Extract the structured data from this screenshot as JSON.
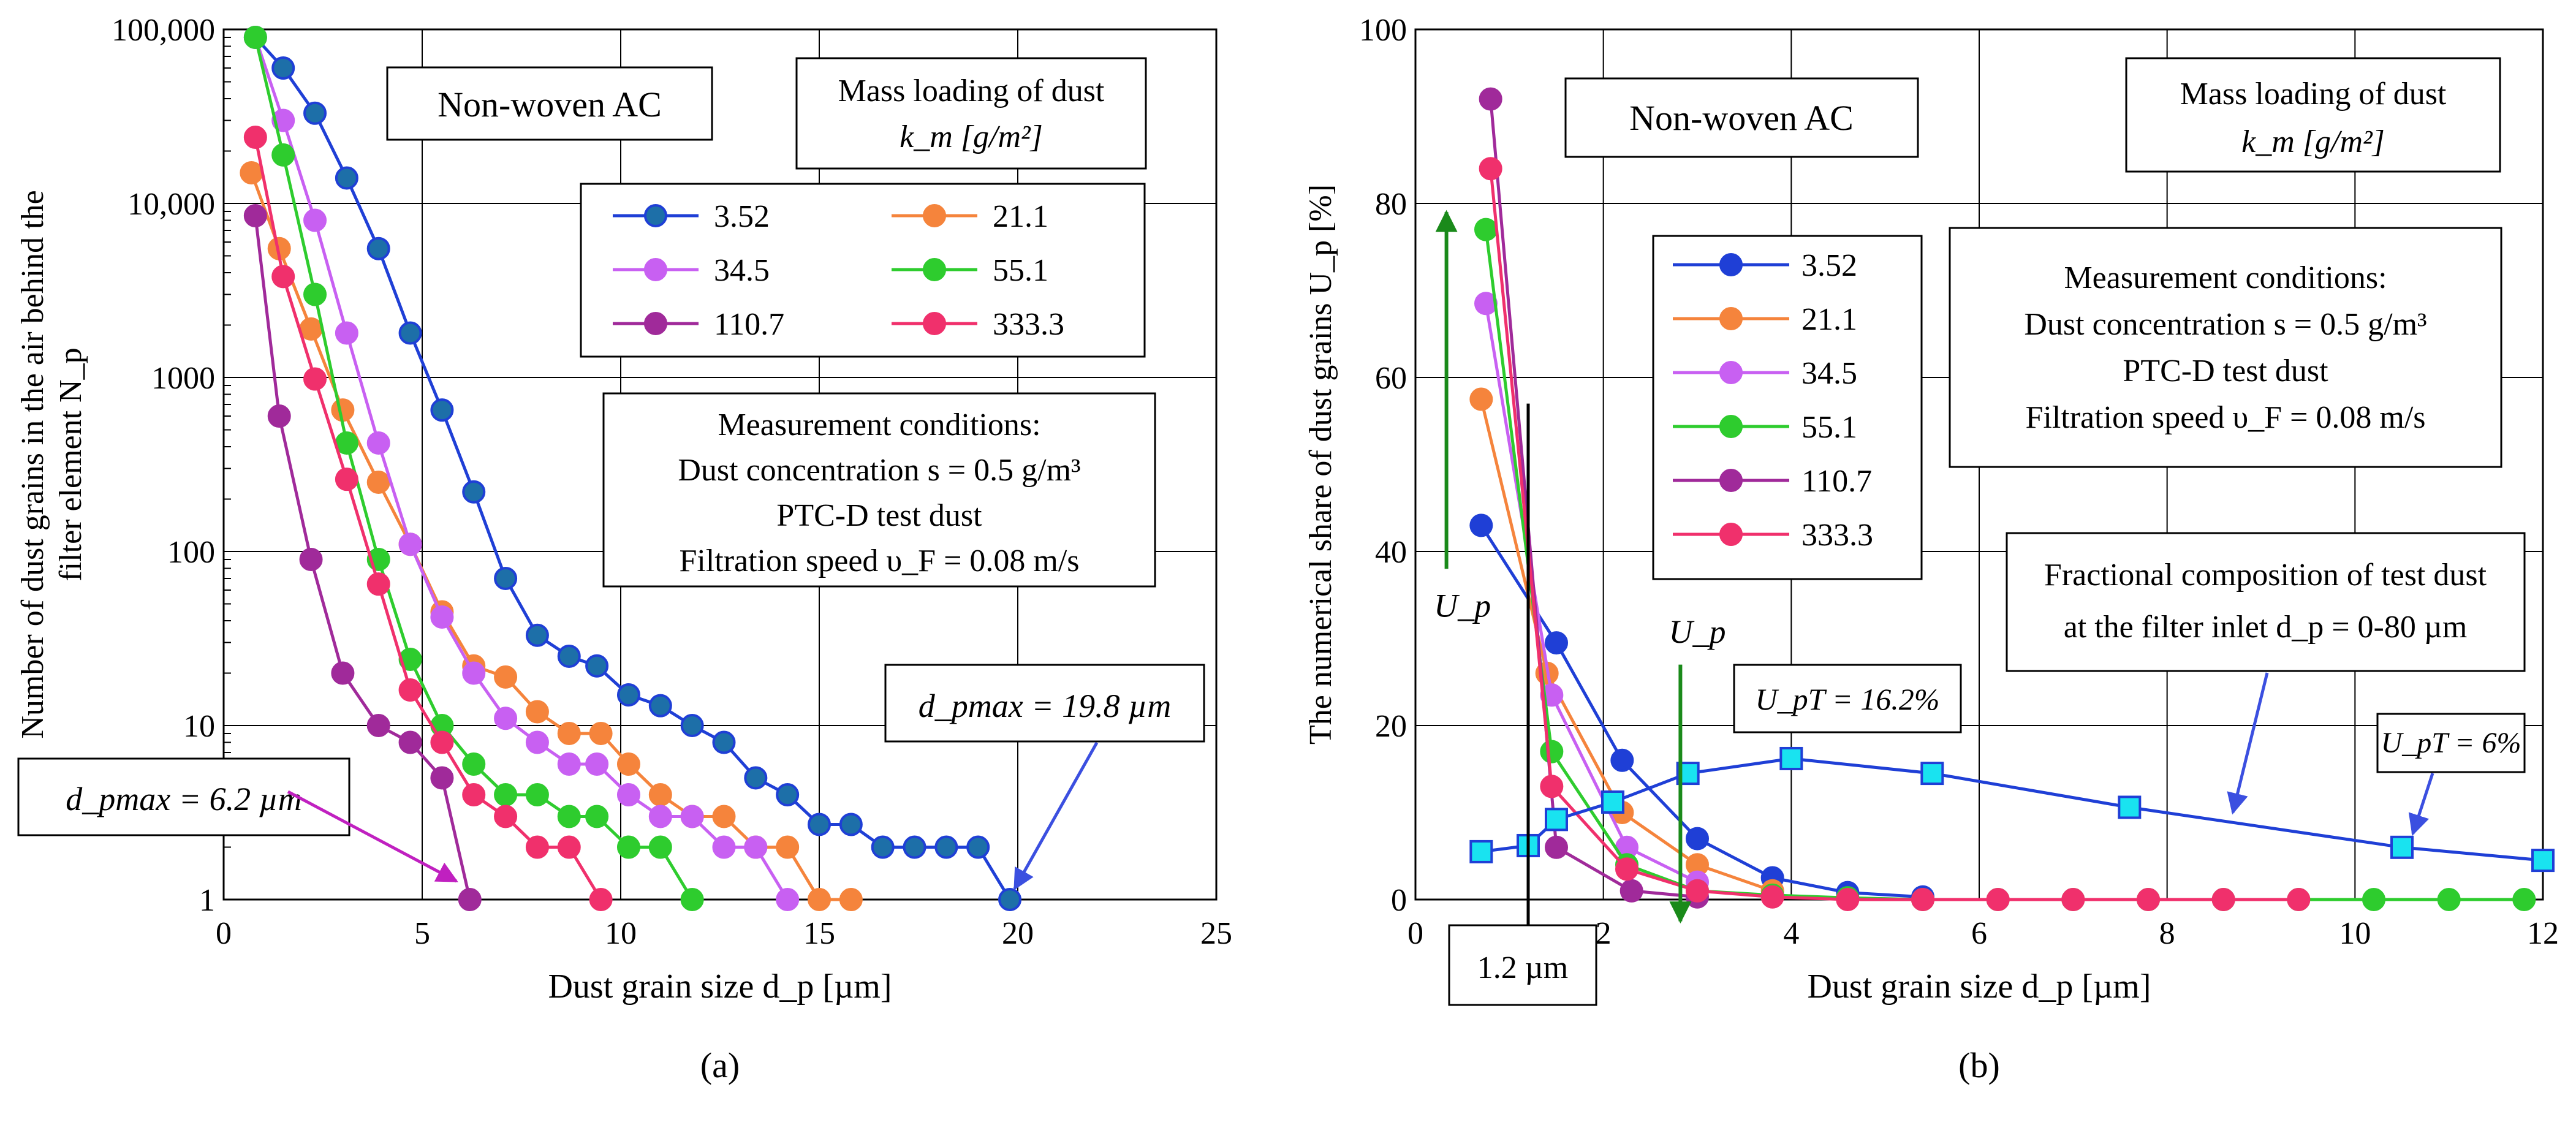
{
  "chart_data": [
    {
      "type": "line",
      "panel_label": "(a)",
      "xlabel": "Dust grain size d_p [µm]",
      "ylabel_lines": [
        "Number of dust grains in the air behind the",
        "filter element N_p"
      ],
      "yscale": "log",
      "xlim": [
        0,
        25
      ],
      "ylim": [
        1,
        100000
      ],
      "xticks": [
        0,
        5,
        10,
        15,
        20,
        25
      ],
      "yticks": [
        1,
        10,
        100,
        1000,
        10000,
        100000
      ],
      "ytick_labels": [
        "1",
        "10",
        "100",
        "1000",
        "10,000",
        "100,000"
      ],
      "title_box": "Non-woven AC",
      "legend_title_lines": [
        "Mass loading of dust",
        "k_m [g/m²]"
      ],
      "conditions_lines": [
        "Measurement conditions:",
        "Dust concentration s = 0.5 g/m³",
        "PTC-D test dust",
        "Filtration speed υ_F = 0.08 m/s"
      ],
      "annotations": [
        {
          "text": "d_pmax = 19.8 µm",
          "at": [
            19.8,
            1
          ]
        },
        {
          "text": "d_pmax = 6.2 µm",
          "at": [
            6.2,
            1
          ]
        }
      ],
      "series": [
        {
          "name": "3.52",
          "color": "#1f3fd6",
          "marker_fill": "#1d6fa8",
          "x": [
            0.8,
            1.5,
            2.3,
            3.1,
            3.9,
            4.7,
            5.5,
            6.3,
            7.1,
            7.9,
            8.7,
            9.4,
            10.2,
            11.0,
            11.8,
            12.6,
            13.4,
            14.2,
            15.0,
            15.8,
            16.6,
            17.4,
            18.2,
            19.0,
            19.8
          ],
          "y": [
            90000,
            60000,
            33000,
            14000,
            5500,
            1800,
            650,
            220,
            70,
            33,
            25,
            22,
            15,
            13,
            10,
            8,
            5,
            4,
            2.7,
            2.7,
            2,
            2,
            2,
            2,
            1
          ]
        },
        {
          "name": "21.1",
          "color": "#f5843c",
          "marker_fill": "#f5843c",
          "x": [
            0.7,
            1.4,
            2.2,
            3.0,
            3.9,
            4.7,
            5.5,
            6.3,
            7.1,
            7.9,
            8.7,
            9.5,
            10.2,
            11.0,
            11.8,
            12.6,
            13.4,
            14.2,
            15.0,
            15.8
          ],
          "y": [
            15000,
            5500,
            1900,
            650,
            250,
            110,
            45,
            22,
            19,
            12,
            9,
            9,
            6,
            4,
            3,
            3,
            2,
            2,
            1,
            1
          ]
        },
        {
          "name": "34.5",
          "color": "#c860f2",
          "marker_fill": "#c860f2",
          "x": [
            0.8,
            1.5,
            2.3,
            3.1,
            3.9,
            4.7,
            5.5,
            6.3,
            7.1,
            7.9,
            8.7,
            9.4,
            10.2,
            11.0,
            11.8,
            12.6,
            13.4,
            14.2
          ],
          "y": [
            90000,
            30000,
            8000,
            1800,
            420,
            110,
            42,
            20,
            11,
            8,
            6,
            6,
            4,
            3,
            3,
            2,
            2,
            1
          ]
        },
        {
          "name": "55.1",
          "color": "#2ecc2e",
          "marker_fill": "#2ecc2e",
          "x": [
            0.8,
            1.5,
            2.3,
            3.1,
            3.9,
            4.7,
            5.5,
            6.3,
            7.1,
            7.9,
            8.7,
            9.4,
            10.2,
            11.0,
            11.8
          ],
          "y": [
            90000,
            19000,
            3000,
            420,
            90,
            24,
            10,
            6,
            4,
            4,
            3,
            3,
            2,
            2,
            1
          ]
        },
        {
          "name": "110.7",
          "color": "#a02a9a",
          "marker_fill": "#a02a9a",
          "x": [
            0.8,
            1.4,
            2.2,
            3.0,
            3.9,
            4.7,
            5.5,
            6.2
          ],
          "y": [
            8500,
            600,
            90,
            20,
            10,
            8,
            5,
            1
          ]
        },
        {
          "name": "333.3",
          "color": "#f0306c",
          "marker_fill": "#f0306c",
          "x": [
            0.8,
            1.5,
            2.3,
            3.1,
            3.9,
            4.7,
            5.5,
            6.3,
            7.1,
            7.9,
            8.7,
            9.5
          ],
          "y": [
            24000,
            3800,
            980,
            260,
            65,
            16,
            8,
            4,
            3,
            2,
            2,
            1
          ]
        }
      ]
    },
    {
      "type": "line",
      "panel_label": "(b)",
      "xlabel": "Dust grain size d_p [µm]",
      "ylabel": "The numerical share of dust grains U_p [%]",
      "xlim": [
        0,
        12
      ],
      "ylim": [
        0,
        100
      ],
      "xticks": [
        0,
        2,
        4,
        6,
        8,
        10,
        12
      ],
      "yticks": [
        0,
        20,
        40,
        60,
        80,
        100
      ],
      "title_box": "Non-woven AC",
      "legend_title_lines": [
        "Mass loading of dust",
        "k_m [g/m²]"
      ],
      "conditions_lines": [
        "Measurement conditions:",
        "Dust concentration s = 0.5 g/m³",
        "PTC-D test dust",
        "Filtration speed υ_F = 0.08 m/s"
      ],
      "test_dust_label_lines": [
        "Fractional composition of test dust",
        "at the filter inlet d_p = 0-80 µm"
      ],
      "annotations": [
        {
          "text": "U_pT = 16.2%",
          "at": [
            4.0,
            16.2
          ]
        },
        {
          "text": "U_pT = 6%",
          "at": [
            10.5,
            6
          ]
        },
        {
          "text": "1.2 µm",
          "at": [
            1.2,
            0
          ]
        },
        {
          "text": "U_p",
          "at": [
            0.3,
            34
          ]
        },
        {
          "text": "U_p",
          "at": [
            2.7,
            30
          ]
        }
      ],
      "series": [
        {
          "name": "3.52",
          "color": "#1f3fd6",
          "marker_fill": "#1f3fd6",
          "x": [
            0.7,
            1.5,
            2.2,
            3.0,
            3.8,
            4.6,
            5.4
          ],
          "y": [
            43,
            29.5,
            16,
            7,
            2.5,
            0.8,
            0.3
          ]
        },
        {
          "name": "21.1",
          "color": "#f5843c",
          "marker_fill": "#f5843c",
          "x": [
            0.7,
            1.4,
            2.2,
            3.0,
            3.8
          ],
          "y": [
            57.5,
            26,
            10,
            4,
            1
          ]
        },
        {
          "name": "34.5",
          "color": "#c860f2",
          "marker_fill": "#c860f2",
          "x": [
            0.75,
            1.45,
            2.25,
            3.0
          ],
          "y": [
            68.5,
            23.5,
            6,
            2
          ]
        },
        {
          "name": "55.1",
          "color": "#2ecc2e",
          "marker_fill": "#2ecc2e",
          "x": [
            0.75,
            1.45,
            2.25,
            3.0,
            3.8,
            4.6,
            5.4,
            6.2,
            7.0,
            7.8,
            8.6,
            9.4,
            10.2,
            11.0,
            11.8
          ],
          "y": [
            77,
            17,
            4,
            1,
            0.5,
            0.2,
            0,
            0,
            0,
            0,
            0,
            0,
            0,
            0,
            0
          ]
        },
        {
          "name": "110.7",
          "color": "#a02a9a",
          "marker_fill": "#a02a9a",
          "x": [
            0.8,
            1.5,
            2.3,
            3.0
          ],
          "y": [
            92,
            6,
            1,
            0.3
          ]
        },
        {
          "name": "333.3",
          "color": "#f0306c",
          "marker_fill": "#f0306c",
          "x": [
            0.8,
            1.45,
            2.25,
            3.0,
            3.8,
            4.6,
            5.4,
            6.2,
            7.0,
            7.8,
            8.6,
            9.4
          ],
          "y": [
            84,
            13,
            3.5,
            1,
            0.3,
            0,
            0,
            0,
            0,
            0,
            0,
            0
          ]
        },
        {
          "name": "test dust",
          "color": "#1f3fd6",
          "marker_fill": "#19e3f0",
          "marker": "square",
          "show_in_legend": false,
          "x": [
            0.7,
            1.2,
            1.5,
            2.1,
            2.9,
            4.0,
            5.5,
            7.6,
            10.5,
            12.0
          ],
          "y": [
            5.5,
            6.2,
            9.2,
            11.2,
            14.5,
            16.2,
            14.5,
            10.6,
            6.0,
            4.5
          ]
        }
      ]
    }
  ]
}
